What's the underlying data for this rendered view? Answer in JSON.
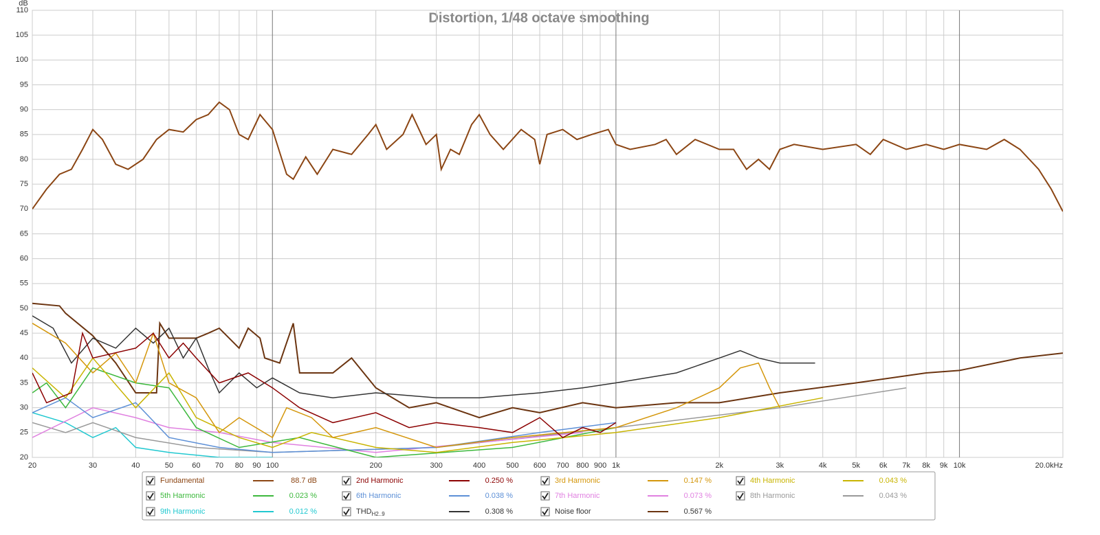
{
  "chart_data": {
    "type": "line",
    "title": "Distortion, 1/48 octave smoothing",
    "y_label": "dB",
    "log_x": true,
    "grid": true,
    "xlim": [
      20,
      20000
    ],
    "ylim": [
      20,
      110
    ],
    "yticks": [
      20,
      25,
      30,
      35,
      40,
      45,
      50,
      55,
      60,
      65,
      70,
      75,
      80,
      85,
      90,
      95,
      100,
      105,
      110
    ],
    "xticks": [
      20,
      30,
      40,
      50,
      60,
      70,
      80,
      90,
      100,
      200,
      300,
      400,
      500,
      600,
      700,
      800,
      900,
      {
        "value": 1000,
        "label": "1k"
      },
      {
        "value": 2000,
        "label": "2k"
      },
      {
        "value": 3000,
        "label": "3k"
      },
      {
        "value": 4000,
        "label": "4k"
      },
      {
        "value": 5000,
        "label": "5k"
      },
      {
        "value": 6000,
        "label": "6k"
      },
      {
        "value": 7000,
        "label": "7k"
      },
      {
        "value": 8000,
        "label": "8k"
      },
      {
        "value": 9000,
        "label": "9k"
      },
      {
        "value": 10000,
        "label": "10k"
      },
      {
        "value": 20000,
        "label": "20.0kHz"
      }
    ],
    "series": [
      {
        "name": "Fundamental",
        "color": "#8b4513",
        "legend_value": "88.7 dB",
        "x": [
          20,
          22,
          24,
          26,
          28,
          30,
          32,
          35,
          38,
          42,
          46,
          50,
          55,
          60,
          65,
          70,
          75,
          80,
          85,
          92,
          100,
          110,
          115,
          125,
          135,
          150,
          170,
          190,
          200,
          215,
          240,
          255,
          280,
          300,
          310,
          330,
          350,
          380,
          400,
          430,
          470,
          530,
          580,
          600,
          630,
          700,
          770,
          850,
          950,
          1000,
          1100,
          1300,
          1400,
          1500,
          1700,
          2000,
          2200,
          2400,
          2600,
          2800,
          3000,
          3300,
          4000,
          5000,
          5500,
          6000,
          7000,
          8000,
          9000,
          10000,
          12000,
          13500,
          15000,
          17000,
          18500,
          20000
        ],
        "values": [
          70,
          74,
          77,
          78,
          82,
          86,
          84,
          79,
          78,
          80,
          84,
          86,
          85.5,
          88,
          89,
          91.5,
          90,
          85,
          84,
          89,
          86,
          77,
          76,
          80.5,
          77,
          82,
          81,
          85,
          87,
          82,
          85,
          89,
          83,
          85,
          78,
          82,
          81,
          87,
          89,
          85,
          82,
          86,
          84,
          79,
          85,
          86,
          84,
          85,
          86,
          83,
          82,
          83,
          84,
          81,
          84,
          82,
          82,
          78,
          80,
          78,
          82,
          83,
          82,
          83,
          81,
          84,
          82,
          83,
          82,
          83,
          82,
          84,
          82,
          78,
          74,
          69.5
        ]
      },
      {
        "name": "2nd Harmonic",
        "color": "#8b0000",
        "legend_value": "0.250 %",
        "x": [
          20,
          22,
          26,
          28,
          30,
          40,
          45,
          50,
          55,
          60,
          70,
          85,
          100,
          120,
          150,
          200,
          250,
          300,
          400,
          500,
          600,
          700,
          800,
          900,
          1000
        ],
        "values": [
          37,
          31,
          33,
          45,
          40,
          42,
          45,
          40,
          43,
          40,
          35,
          37,
          34,
          30,
          27,
          29,
          26,
          27,
          26,
          25,
          28,
          24,
          26,
          25,
          27
        ]
      },
      {
        "name": "3rd Harmonic",
        "color": "#d4960a",
        "legend_value": "0.147 %",
        "x": [
          20,
          25,
          30,
          35,
          40,
          45,
          50,
          60,
          70,
          80,
          100,
          110,
          130,
          150,
          200,
          300,
          500,
          1000,
          1500,
          2000,
          2300,
          2600,
          2800,
          3000
        ],
        "values": [
          47,
          43,
          37,
          41,
          35,
          45,
          35,
          32,
          25,
          28,
          24,
          30,
          28,
          24,
          26,
          22,
          24,
          26,
          30,
          34,
          38,
          39,
          34,
          30
        ]
      },
      {
        "name": "4th Harmonic",
        "color": "#c8b400",
        "legend_value": "0.043 %",
        "x": [
          20,
          25,
          30,
          40,
          50,
          60,
          80,
          100,
          130,
          200,
          300,
          500,
          1000,
          2000,
          4000
        ],
        "values": [
          38,
          32,
          40,
          30,
          37,
          28,
          24,
          22,
          25,
          22,
          21,
          23,
          25,
          28,
          32
        ]
      },
      {
        "name": "5th Harmonic",
        "color": "#3cb83c",
        "legend_value": "0.023 %",
        "x": [
          20,
          22,
          25,
          30,
          40,
          50,
          60,
          80,
          120,
          200,
          500,
          1000
        ],
        "values": [
          33,
          35,
          30,
          38,
          35,
          34,
          26,
          22,
          24,
          20,
          22,
          26
        ]
      },
      {
        "name": "6th Harmonic",
        "color": "#5c8fd6",
        "legend_value": "0.038 %",
        "x": [
          20,
          25,
          30,
          40,
          50,
          70,
          100,
          300,
          600,
          1000
        ],
        "values": [
          29,
          32,
          28,
          31,
          24,
          22,
          21,
          22,
          25,
          27
        ]
      },
      {
        "name": "7th Harmonic",
        "color": "#e080e0",
        "legend_value": "0.073 %",
        "x": [
          20,
          30,
          40,
          50,
          70,
          100,
          200,
          400,
          800
        ],
        "values": [
          24,
          30,
          28,
          26,
          25,
          23,
          21,
          23,
          25
        ]
      },
      {
        "name": "8th Harmonic",
        "color": "#999999",
        "legend_value": "0.043 %",
        "x": [
          20,
          25,
          30,
          40,
          60,
          100,
          300,
          1000,
          3000,
          7000
        ],
        "values": [
          27,
          25,
          27,
          24,
          22,
          21,
          22,
          26,
          30,
          34
        ]
      },
      {
        "name": "9th Harmonic",
        "color": "#20c8d0",
        "legend_value": "0.012 %",
        "x": [
          20,
          25,
          30,
          35,
          40,
          50,
          70,
          100
        ],
        "values": [
          29,
          27,
          24,
          26,
          22,
          21,
          20,
          20
        ]
      },
      {
        "name": "THD",
        "name_sub": "H2..9",
        "color": "#333333",
        "legend_value": "0.308 %",
        "x": [
          20,
          23,
          26,
          30,
          35,
          40,
          45,
          50,
          55,
          60,
          65,
          70,
          80,
          90,
          100,
          120,
          150,
          200,
          300,
          400,
          600,
          800,
          1000,
          1500,
          2000,
          2300,
          2600,
          3000,
          3800
        ],
        "values": [
          48.5,
          46,
          39,
          44,
          42,
          46,
          43,
          46,
          40,
          44,
          38,
          33,
          37,
          34,
          36,
          33,
          32,
          33,
          32,
          32,
          33,
          34,
          35,
          37,
          40,
          41.5,
          40,
          39,
          39
        ]
      },
      {
        "name": "Noise floor",
        "color": "#6b3410",
        "legend_value": "0.567 %",
        "x": [
          20,
          24,
          25,
          30,
          35,
          40,
          46,
          47,
          50,
          60,
          65,
          70,
          80,
          85,
          92,
          95,
          105,
          115,
          120,
          150,
          170,
          200,
          250,
          300,
          400,
          500,
          600,
          800,
          1000,
          1500,
          2000,
          3000,
          5000,
          8000,
          10000,
          15000,
          20000
        ],
        "values": [
          51,
          50.5,
          49,
          44.5,
          39,
          33,
          33,
          47,
          44,
          44,
          45,
          46,
          42,
          46,
          44,
          40,
          39,
          47,
          37,
          37,
          40,
          34,
          30,
          31,
          28,
          30,
          29,
          31,
          30,
          31,
          31,
          33,
          35,
          37,
          37.5,
          40,
          41
        ]
      }
    ]
  }
}
